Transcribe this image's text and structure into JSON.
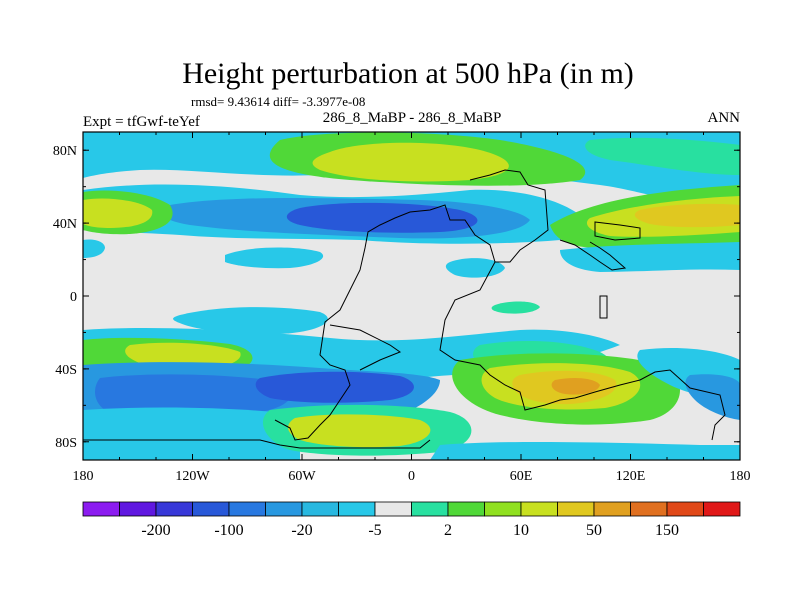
{
  "chart_data": {
    "type": "heatmap",
    "title": "Height perturbation at 500 hPa (in m)",
    "stats_line": "rmsd= 9.43614 diff= -3.3977e-08",
    "left_label": "Expt = tfGwf-teYef",
    "center_label": "286_8_MaBP - 286_8_MaBP",
    "right_label": "ANN",
    "x_ticks": [
      "180",
      "120W",
      "60W",
      "0",
      "60E",
      "120E",
      "180"
    ],
    "x_tick_values": [
      -180,
      -120,
      -60,
      0,
      60,
      120,
      180
    ],
    "y_ticks": [
      "80N",
      "40N",
      "0",
      "40S",
      "80S"
    ],
    "y_tick_values": [
      80,
      40,
      0,
      -40,
      -80
    ],
    "xlim": [
      -180,
      180
    ],
    "ylim": [
      -90,
      90
    ],
    "colorbar": {
      "colors": [
        "#8c1cf0",
        "#6018e0",
        "#3838d8",
        "#2858d8",
        "#2878e0",
        "#2898e0",
        "#28b8e0",
        "#28c8e8",
        "#e8e8e8",
        "#28e0a0",
        "#50d838",
        "#90e020",
        "#c8e020",
        "#e0c820",
        "#e0a020",
        "#e07020",
        "#e04818",
        "#e01818"
      ],
      "labels": [
        "-200",
        "-100",
        "-20",
        "-5",
        "2",
        "10",
        "50",
        "150"
      ]
    },
    "regions": [
      {
        "name": "north-polar-band",
        "color": "#28c8e8",
        "approx": "70N-85N, 180W-180E"
      },
      {
        "name": "arctic-positive-cell",
        "color": "#c8e020",
        "approx": "70N-80N, 80W-10E"
      },
      {
        "name": "north-atlantic-negative",
        "color": "#2858d8",
        "approx": "35N-55N, 60W-10E"
      },
      {
        "name": "east-asia-positive",
        "color": "#c8e020",
        "approx": "35N-55N, 60E-170E"
      },
      {
        "name": "north-pacific-positive",
        "color": "#c8e020",
        "approx": "35N-50N, 180W-150W"
      },
      {
        "name": "south-pacific-negative",
        "color": "#2858d8",
        "approx": "40S-65S, 170W-40W"
      },
      {
        "name": "south-pacific-positive",
        "color": "#c8e020",
        "approx": "30S-45S, 150W-110W"
      },
      {
        "name": "indian-ocean-positive",
        "color": "#e0c820",
        "approx": "40S-70S, 40E-130E"
      },
      {
        "name": "antarctic-positive",
        "color": "#c8e020",
        "approx": "65S-80S, 60W-10W"
      }
    ]
  }
}
